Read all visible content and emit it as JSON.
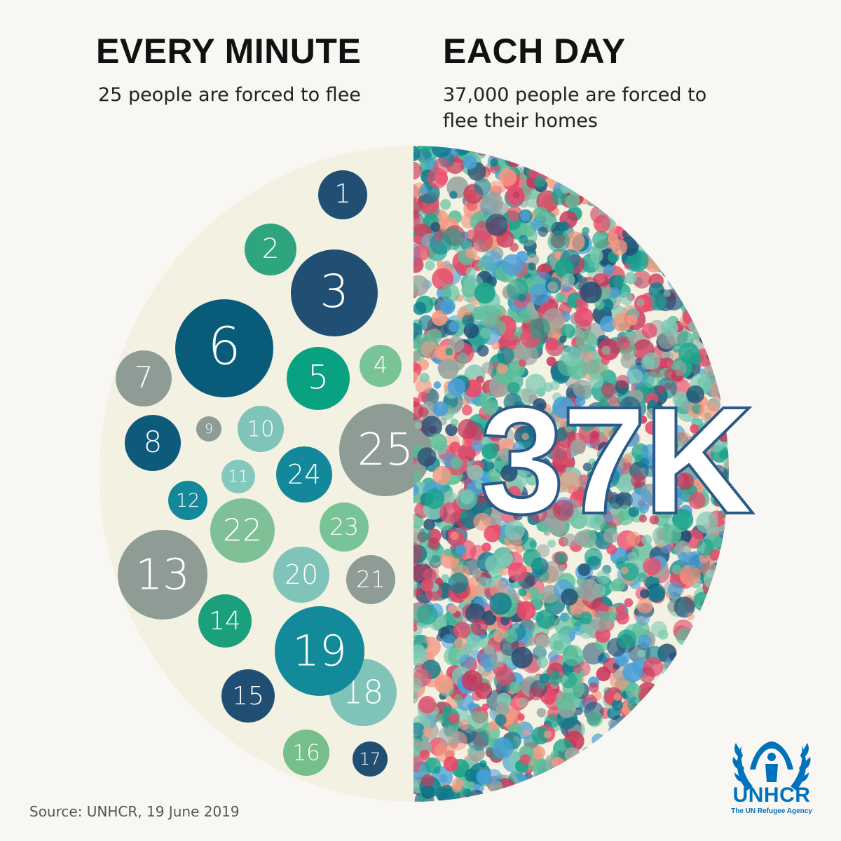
{
  "left": {
    "heading": "EVERY MINUTE",
    "subheading": "25 people are forced to flee",
    "bubbles": [
      {
        "label": "1",
        "color": "#214f73"
      },
      {
        "label": "2",
        "color": "#2ea57e"
      },
      {
        "label": "3",
        "color": "#214f73"
      },
      {
        "label": "4",
        "color": "#79c497"
      },
      {
        "label": "5",
        "color": "#08a282"
      },
      {
        "label": "6",
        "color": "#095b7a"
      },
      {
        "label": "7",
        "color": "#8f9c96"
      },
      {
        "label": "8",
        "color": "#0e5a7a"
      },
      {
        "label": "9",
        "color": "#8f9c96"
      },
      {
        "label": "10",
        "color": "#7fc3b9"
      },
      {
        "label": "11",
        "color": "#84c8bd"
      },
      {
        "label": "12",
        "color": "#13889a"
      },
      {
        "label": "13",
        "color": "#8f9c96"
      },
      {
        "label": "14",
        "color": "#1aa07d"
      },
      {
        "label": "15",
        "color": "#214f73"
      },
      {
        "label": "16",
        "color": "#76bf8a"
      },
      {
        "label": "17",
        "color": "#214f73"
      },
      {
        "label": "18",
        "color": "#7fc3b9"
      },
      {
        "label": "19",
        "color": "#138a99"
      },
      {
        "label": "20",
        "color": "#7fc3b9"
      },
      {
        "label": "21",
        "color": "#8f9c96"
      },
      {
        "label": "22",
        "color": "#7fc097"
      },
      {
        "label": "23",
        "color": "#79c497"
      },
      {
        "label": "24",
        "color": "#13889a"
      },
      {
        "label": "25",
        "color": "#8f9c96"
      }
    ]
  },
  "right": {
    "heading": "EACH DAY",
    "subheading": "37,000 people are forced to flee their homes",
    "big_label": "37K",
    "dot_palette": [
      "#e8496a",
      "#1aa38a",
      "#0e7d8e",
      "#7ec9b4",
      "#f49a82",
      "#9aa5a0",
      "#4a9fd8",
      "#214f73",
      "#5dbf9a",
      "#c9375a"
    ]
  },
  "source": "Source: UNHCR, 19 June 2019",
  "logo": {
    "icon": "unhcr-emblem-icon",
    "name": "UNHCR",
    "tagline": "The UN Refugee Agency",
    "color": "#0072bc"
  },
  "colors": {
    "background": "#f8f7f3",
    "circle": "#f3f1e2",
    "big_label_stroke": "#2a5a8a"
  }
}
